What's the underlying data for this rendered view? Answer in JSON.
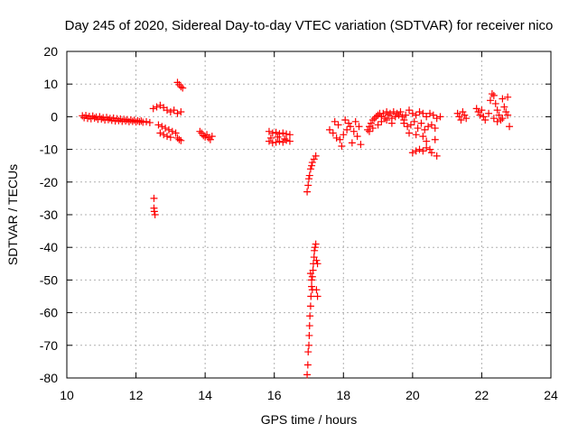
{
  "chart_data": {
    "type": "scatter",
    "title": "Day 245 of 2020, Sidereal Day-to-day VTEC variation (SDTVAR) for receiver nico",
    "xlabel": "GPS time / hours",
    "ylabel": "SDTVAR / TECUs",
    "xlim": [
      10,
      24
    ],
    "ylim": [
      -80,
      20
    ],
    "xticks": [
      "10",
      "12",
      "14",
      "16",
      "18",
      "20",
      "22",
      "24"
    ],
    "yticks": [
      "20",
      "10",
      "0",
      "-10",
      "-20",
      "-30",
      "-40",
      "-50",
      "-60",
      "-70",
      "-80"
    ],
    "grid": true,
    "marker": "+",
    "series_color": "#ff0000",
    "series": [
      {
        "name": "SDTVAR",
        "points": [
          [
            10.45,
            0.3
          ],
          [
            10.5,
            -0.3
          ],
          [
            10.55,
            0.4
          ],
          [
            10.6,
            -0.5
          ],
          [
            10.65,
            0.1
          ],
          [
            10.7,
            -0.6
          ],
          [
            10.75,
            0.2
          ],
          [
            10.8,
            -0.4
          ],
          [
            10.85,
            -0.1
          ],
          [
            10.9,
            -0.8
          ],
          [
            10.95,
            0.0
          ],
          [
            11.0,
            -0.7
          ],
          [
            11.05,
            -0.3
          ],
          [
            11.1,
            -1.0
          ],
          [
            11.15,
            -0.2
          ],
          [
            11.2,
            -0.9
          ],
          [
            11.25,
            -0.5
          ],
          [
            11.3,
            -1.1
          ],
          [
            11.35,
            -0.4
          ],
          [
            11.4,
            -1.3
          ],
          [
            11.45,
            -0.6
          ],
          [
            11.5,
            -1.2
          ],
          [
            11.55,
            -0.7
          ],
          [
            11.6,
            -1.4
          ],
          [
            11.65,
            -0.8
          ],
          [
            11.7,
            -1.3
          ],
          [
            11.75,
            -0.9
          ],
          [
            11.8,
            -1.5
          ],
          [
            11.85,
            -1.0
          ],
          [
            11.9,
            -1.4
          ],
          [
            11.95,
            -1.1
          ],
          [
            12.0,
            -1.6
          ],
          [
            12.05,
            -1.2
          ],
          [
            12.1,
            -1.5
          ],
          [
            12.15,
            -1.3
          ],
          [
            12.2,
            -1.7
          ],
          [
            12.3,
            -1.5
          ],
          [
            12.4,
            -1.8
          ],
          [
            12.52,
            -25.0
          ],
          [
            12.52,
            -28.0
          ],
          [
            12.53,
            -29.0
          ],
          [
            12.55,
            -30.0
          ],
          [
            12.5,
            2.5
          ],
          [
            12.6,
            3.0
          ],
          [
            12.7,
            3.5
          ],
          [
            12.8,
            2.8
          ],
          [
            12.9,
            2.0
          ],
          [
            13.0,
            1.5
          ],
          [
            13.1,
            2.0
          ],
          [
            13.2,
            1.0
          ],
          [
            13.3,
            1.5
          ],
          [
            12.65,
            -2.5
          ],
          [
            12.75,
            -3.0
          ],
          [
            12.85,
            -3.5
          ],
          [
            12.95,
            -4.0
          ],
          [
            13.05,
            -4.5
          ],
          [
            12.7,
            -5.0
          ],
          [
            12.8,
            -5.5
          ],
          [
            12.9,
            -6.0
          ],
          [
            13.0,
            -6.3
          ],
          [
            13.15,
            -5.0
          ],
          [
            13.2,
            -6.5
          ],
          [
            13.25,
            -7.0
          ],
          [
            13.3,
            -7.3
          ],
          [
            13.2,
            10.5
          ],
          [
            13.25,
            9.8
          ],
          [
            13.3,
            9.2
          ],
          [
            13.35,
            8.8
          ],
          [
            13.85,
            -4.5
          ],
          [
            13.9,
            -5.0
          ],
          [
            13.95,
            -5.8
          ],
          [
            14.0,
            -6.2
          ],
          [
            14.05,
            -5.5
          ],
          [
            14.1,
            -6.5
          ],
          [
            14.15,
            -7.0
          ],
          [
            14.2,
            -6.0
          ],
          [
            15.85,
            -4.5
          ],
          [
            15.95,
            -5.0
          ],
          [
            16.05,
            -4.8
          ],
          [
            16.15,
            -5.2
          ],
          [
            16.25,
            -5.0
          ],
          [
            16.35,
            -5.3
          ],
          [
            16.45,
            -5.5
          ],
          [
            15.85,
            -7.5
          ],
          [
            15.95,
            -8.0
          ],
          [
            16.05,
            -7.8
          ],
          [
            16.15,
            -7.5
          ],
          [
            16.25,
            -7.8
          ],
          [
            16.35,
            -7.2
          ],
          [
            16.45,
            -7.5
          ],
          [
            15.9,
            -6.5
          ],
          [
            16.1,
            -6.2
          ],
          [
            16.3,
            -6.8
          ],
          [
            16.95,
            -23.0
          ],
          [
            16.98,
            -21.0
          ],
          [
            17.0,
            -19.0
          ],
          [
            17.02,
            -18.0
          ],
          [
            17.05,
            -16.0
          ],
          [
            17.08,
            -15.0
          ],
          [
            17.1,
            -14.0
          ],
          [
            17.15,
            -13.0
          ],
          [
            17.2,
            -12.0
          ],
          [
            16.95,
            -79.0
          ],
          [
            16.97,
            -76.0
          ],
          [
            16.98,
            -72.0
          ],
          [
            17.0,
            -70.0
          ],
          [
            17.01,
            -67.0
          ],
          [
            17.02,
            -64.0
          ],
          [
            17.03,
            -61.0
          ],
          [
            17.05,
            -58.0
          ],
          [
            17.06,
            -55.0
          ],
          [
            17.08,
            -52.0
          ],
          [
            17.1,
            -49.0
          ],
          [
            17.12,
            -47.0
          ],
          [
            17.13,
            -45.0
          ],
          [
            17.15,
            -43.0
          ],
          [
            17.16,
            -41.0
          ],
          [
            17.18,
            -40.0
          ],
          [
            17.2,
            -39.0
          ],
          [
            17.22,
            -44.0
          ],
          [
            17.25,
            -45.0
          ],
          [
            17.22,
            -53.0
          ],
          [
            17.25,
            -55.0
          ],
          [
            17.05,
            -48.0
          ],
          [
            17.08,
            -50.0
          ],
          [
            17.1,
            -53.0
          ],
          [
            17.6,
            -4.0
          ],
          [
            17.7,
            -5.0
          ],
          [
            17.8,
            -6.5
          ],
          [
            17.9,
            -7.0
          ],
          [
            18.0,
            -5.5
          ],
          [
            18.1,
            -4.0
          ],
          [
            18.2,
            -3.0
          ],
          [
            18.3,
            -4.5
          ],
          [
            18.4,
            -6.0
          ],
          [
            18.5,
            -8.5
          ],
          [
            17.75,
            -1.5
          ],
          [
            17.85,
            -2.5
          ],
          [
            18.05,
            -1.0
          ],
          [
            18.15,
            -2.0
          ],
          [
            18.35,
            -1.5
          ],
          [
            18.45,
            -3.0
          ],
          [
            17.95,
            -9.0
          ],
          [
            18.25,
            -8.0
          ],
          [
            18.7,
            -4.0
          ],
          [
            18.75,
            -3.0
          ],
          [
            18.8,
            -2.0
          ],
          [
            18.85,
            -1.0
          ],
          [
            18.9,
            -0.5
          ],
          [
            18.95,
            0.0
          ],
          [
            19.0,
            0.5
          ],
          [
            19.05,
            1.0
          ],
          [
            19.1,
            0.0
          ],
          [
            19.15,
            1.0
          ],
          [
            19.2,
            -0.5
          ],
          [
            19.25,
            1.5
          ],
          [
            19.3,
            0.5
          ],
          [
            19.35,
            1.0
          ],
          [
            19.4,
            -0.5
          ],
          [
            19.45,
            1.5
          ],
          [
            19.5,
            0.0
          ],
          [
            19.55,
            1.0
          ],
          [
            19.6,
            0.5
          ],
          [
            19.65,
            1.5
          ],
          [
            19.7,
            0.0
          ],
          [
            19.75,
            -1.0
          ],
          [
            19.8,
            0.5
          ],
          [
            18.75,
            -4.5
          ],
          [
            18.85,
            -3.5
          ],
          [
            19.0,
            -2.5
          ],
          [
            19.1,
            -1.5
          ],
          [
            19.25,
            -1.0
          ],
          [
            19.4,
            -2.0
          ],
          [
            19.75,
            -2.0
          ],
          [
            19.85,
            -3.0
          ],
          [
            19.95,
            -2.5
          ],
          [
            20.05,
            -1.5
          ],
          [
            20.15,
            -3.5
          ],
          [
            20.25,
            -2.0
          ],
          [
            20.35,
            -4.0
          ],
          [
            20.45,
            -3.0
          ],
          [
            20.55,
            -2.5
          ],
          [
            20.65,
            -3.5
          ],
          [
            19.9,
            -5.0
          ],
          [
            20.1,
            -5.5
          ],
          [
            20.3,
            -6.0
          ],
          [
            20.4,
            -7.5
          ],
          [
            20.0,
            -11.0
          ],
          [
            20.1,
            -10.5
          ],
          [
            20.2,
            -10.0
          ],
          [
            20.3,
            -10.5
          ],
          [
            20.4,
            -9.5
          ],
          [
            20.5,
            -10.0
          ],
          [
            20.55,
            -11.0
          ],
          [
            20.65,
            -7.0
          ],
          [
            20.7,
            -12.0
          ],
          [
            19.9,
            2.0
          ],
          [
            20.0,
            1.0
          ],
          [
            20.1,
            0.5
          ],
          [
            20.2,
            1.5
          ],
          [
            20.3,
            1.0
          ],
          [
            20.4,
            0.0
          ],
          [
            20.5,
            1.0
          ],
          [
            20.6,
            0.5
          ],
          [
            20.7,
            -0.5
          ],
          [
            20.8,
            0.0
          ],
          [
            21.3,
            1.0
          ],
          [
            21.35,
            0.0
          ],
          [
            21.4,
            -1.0
          ],
          [
            21.45,
            1.5
          ],
          [
            21.5,
            0.5
          ],
          [
            21.55,
            -0.5
          ],
          [
            21.85,
            2.5
          ],
          [
            21.9,
            1.5
          ],
          [
            21.95,
            0.5
          ],
          [
            22.0,
            2.0
          ],
          [
            22.05,
            0.0
          ],
          [
            22.1,
            -1.0
          ],
          [
            22.2,
            1.0
          ],
          [
            22.25,
            5.0
          ],
          [
            22.3,
            7.0
          ],
          [
            22.35,
            6.5
          ],
          [
            22.4,
            4.0
          ],
          [
            22.45,
            2.0
          ],
          [
            22.5,
            0.5
          ],
          [
            22.55,
            -1.0
          ],
          [
            22.6,
            5.5
          ],
          [
            22.65,
            3.0
          ],
          [
            22.7,
            1.5
          ],
          [
            22.75,
            6.0
          ],
          [
            22.75,
            0.5
          ],
          [
            22.8,
            -3.0
          ],
          [
            22.35,
            -0.5
          ],
          [
            22.45,
            -1.5
          ],
          [
            22.6,
            -0.5
          ]
        ]
      }
    ]
  }
}
